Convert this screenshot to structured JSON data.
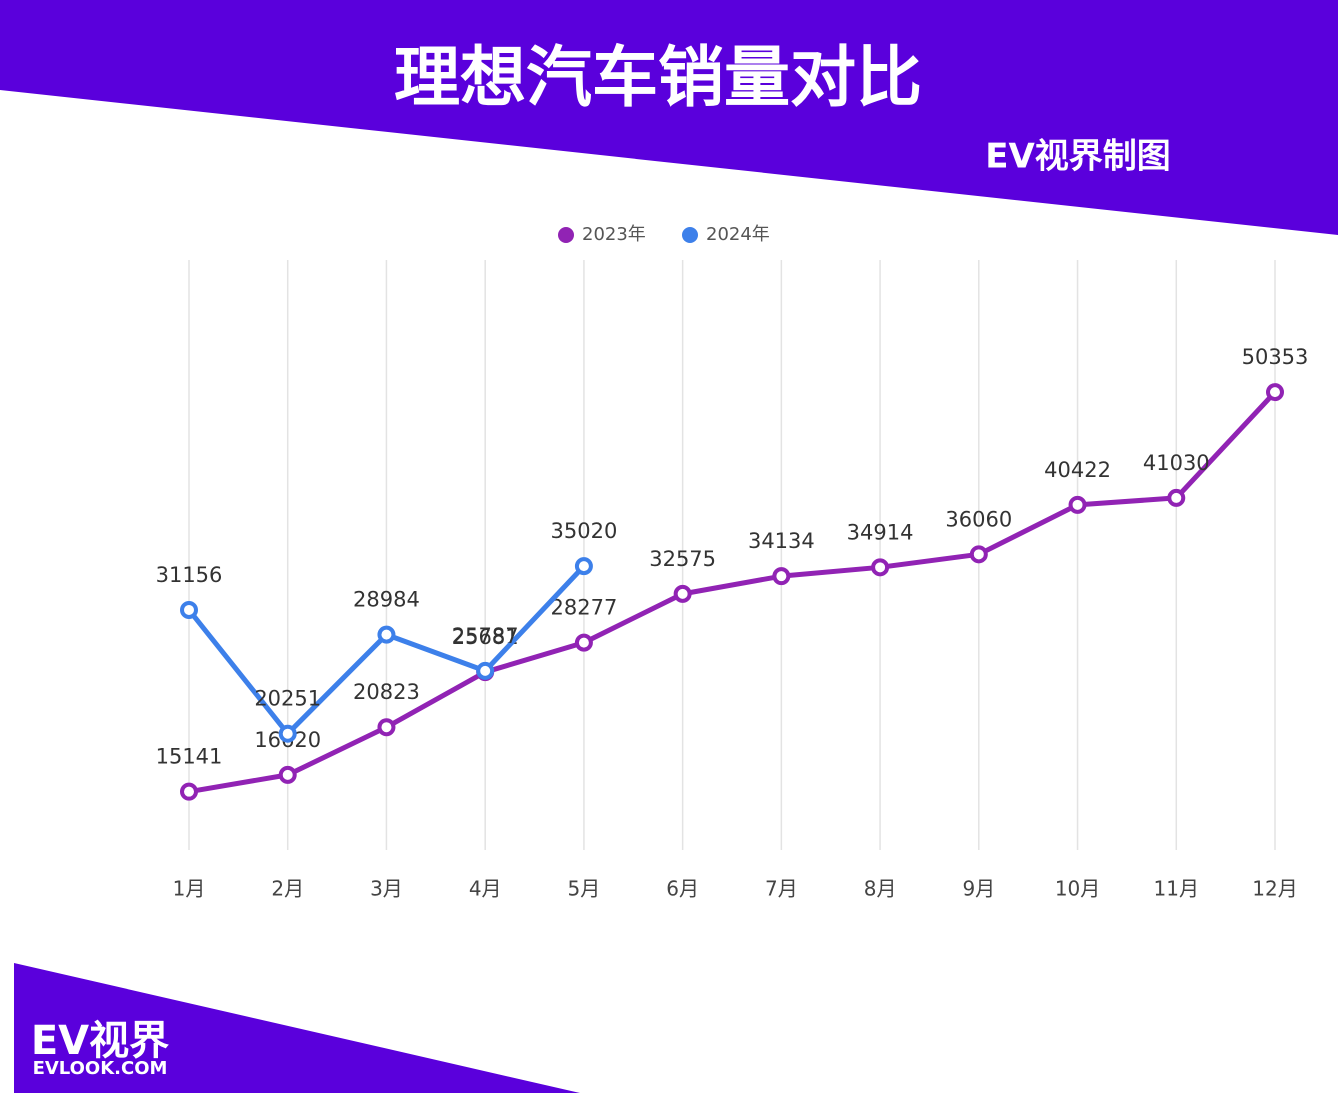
{
  "chart_data": {
    "type": "line",
    "title": "理想汽车销量对比",
    "subtitle": "EV视界制图",
    "categories": [
      "1月",
      "2月",
      "3月",
      "4月",
      "5月",
      "6月",
      "7月",
      "8月",
      "9月",
      "10月",
      "11月",
      "12月"
    ],
    "series": [
      {
        "name": "2023年",
        "color": "#9123b4",
        "values": [
          15141,
          16620,
          20823,
          25681,
          28277,
          32575,
          34134,
          34914,
          36060,
          40422,
          41030,
          50353
        ]
      },
      {
        "name": "2024年",
        "color": "#3d80ea",
        "values": [
          31156,
          20251,
          28984,
          25787,
          35020,
          null,
          null,
          null,
          null,
          null,
          null,
          null
        ]
      }
    ],
    "ylim": [
      10000,
      62000
    ],
    "grid": true,
    "legend": "top"
  },
  "logo": {
    "name": "EV视界",
    "url": "EVLOOK.COM"
  }
}
